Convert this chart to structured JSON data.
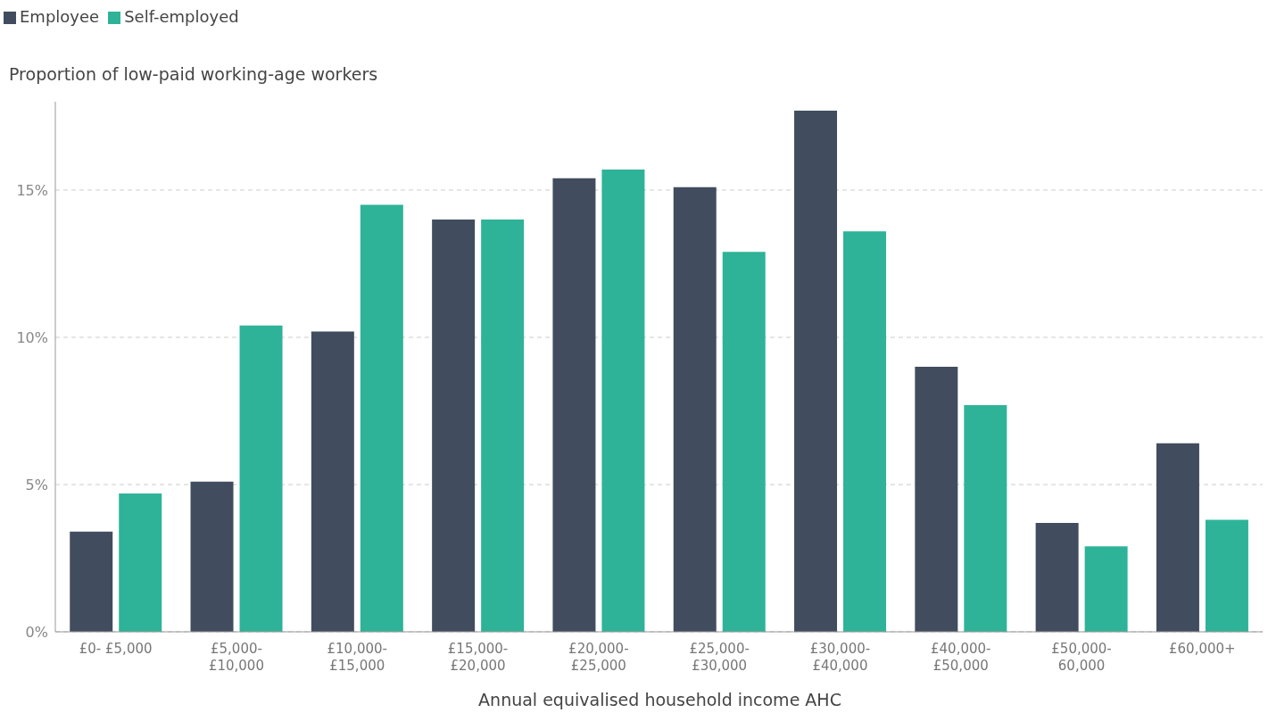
{
  "chart_data": {
    "type": "bar",
    "ylabel": "Proportion of low-paid working-age workers",
    "xlabel": "Annual equivalised household income AHC",
    "categories": [
      "£0- £5,000",
      "£5,000- £10,000",
      "£10,000- £15,000",
      "£15,000- £20,000",
      "£20,000- £25,000",
      "£25,000- £30,000",
      "£30,000- £40,000",
      "£40,000- £50,000",
      "£50,000- 60,000",
      "£60,000+"
    ],
    "series": [
      {
        "name": "Employee",
        "color": "#414d5e",
        "values": [
          3.4,
          5.1,
          10.2,
          14.0,
          15.4,
          15.1,
          17.7,
          9.0,
          3.7,
          6.4
        ]
      },
      {
        "name": "Self-employed",
        "color": "#2eb398",
        "values": [
          4.7,
          10.4,
          14.5,
          14.0,
          15.7,
          12.9,
          13.6,
          7.7,
          2.9,
          3.8
        ]
      }
    ],
    "ylim": [
      0,
      18
    ],
    "yticks": [
      {
        "value": 0,
        "label": "0%"
      },
      {
        "value": 5,
        "label": "5%"
      },
      {
        "value": 10,
        "label": "10%"
      },
      {
        "value": 15,
        "label": "15%"
      }
    ],
    "grid": "y",
    "legend": "top left"
  }
}
